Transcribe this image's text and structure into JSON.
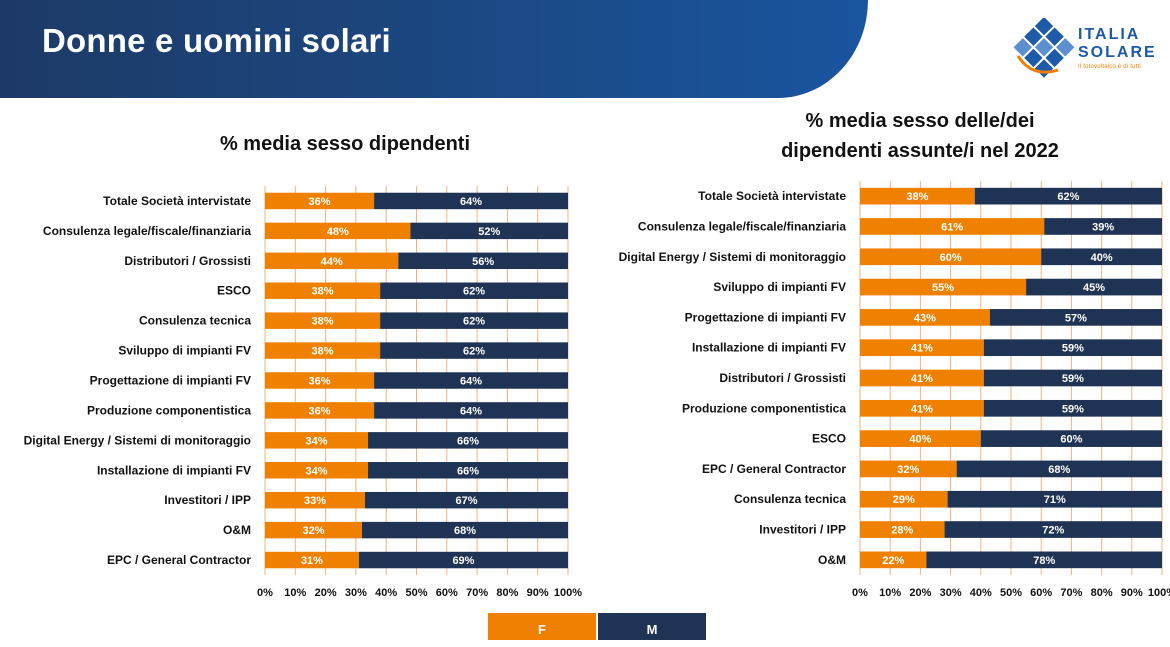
{
  "header": {
    "title": "Donne e uomini solari"
  },
  "logo": {
    "line1": "ITALIA",
    "line2": "SOLARE",
    "tagline": "Il fotovoltaico è di tutti"
  },
  "legend": {
    "f": "F",
    "m": "M"
  },
  "colors": {
    "f": "#f08000",
    "m": "#1f3354",
    "grid": "#f4b27a",
    "header": "#1d3a66"
  },
  "chart_data": [
    {
      "type": "bar",
      "orientation": "horizontal",
      "stacked": true,
      "title": "% media sesso dipendenti",
      "categories": [
        "Totale Società intervistate",
        "Consulenza legale/fiscale/finanziaria",
        "Distributori / Grossisti",
        "ESCO",
        "Consulenza tecnica",
        "Sviluppo di impianti FV",
        "Progettazione di impianti FV",
        "Produzione componentistica",
        "Digital Energy / Sistemi di monitoraggio",
        "Installazione di impianti FV",
        "Investitori / IPP",
        "O&M",
        "EPC / General Contractor"
      ],
      "series": [
        {
          "name": "F",
          "values": [
            36,
            48,
            44,
            38,
            38,
            38,
            36,
            36,
            34,
            34,
            33,
            32,
            31
          ]
        },
        {
          "name": "M",
          "values": [
            64,
            52,
            56,
            62,
            62,
            62,
            64,
            64,
            66,
            66,
            67,
            68,
            69
          ]
        }
      ],
      "xlim": [
        0,
        100
      ],
      "xticks": [
        "0%",
        "10%",
        "20%",
        "30%",
        "40%",
        "50%",
        "60%",
        "70%",
        "80%",
        "90%",
        "100%"
      ],
      "legend": "bottom"
    },
    {
      "type": "bar",
      "orientation": "horizontal",
      "stacked": true,
      "title": "% media sesso delle/dei dipendenti assunte/i nel 2022",
      "title_lines": [
        "% media sesso delle/dei",
        "dipendenti assunte/i nel 2022"
      ],
      "categories": [
        "Totale Società intervistate",
        "Consulenza legale/fiscale/finanziaria",
        "Digital Energy / Sistemi di monitoraggio",
        "Sviluppo di impianti FV",
        "Progettazione di impianti FV",
        "Installazione di impianti FV",
        "Distributori / Grossisti",
        "Produzione componentistica",
        "ESCO",
        "EPC / General Contractor",
        "Consulenza tecnica",
        "Investitori / IPP",
        "O&M"
      ],
      "series": [
        {
          "name": "F",
          "values": [
            38,
            61,
            60,
            55,
            43,
            41,
            41,
            41,
            40,
            32,
            29,
            28,
            22
          ]
        },
        {
          "name": "M",
          "values": [
            62,
            39,
            40,
            45,
            57,
            59,
            59,
            59,
            60,
            68,
            71,
            72,
            78
          ]
        }
      ],
      "xlim": [
        0,
        100
      ],
      "xticks": [
        "0%",
        "10%",
        "20%",
        "30%",
        "40%",
        "50%",
        "60%",
        "70%",
        "80%",
        "90%",
        "100%"
      ],
      "legend": "bottom"
    }
  ]
}
